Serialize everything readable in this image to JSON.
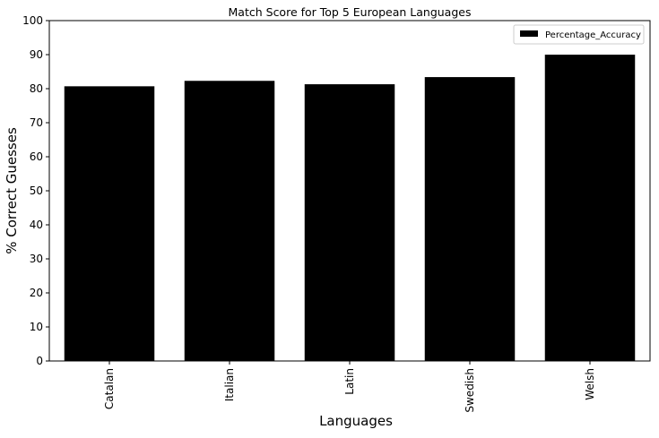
{
  "chart_data": {
    "type": "bar",
    "title": "Match Score for Top 5 European Languages",
    "xlabel": "Languages",
    "ylabel": "% Correct Guesses",
    "categories": [
      "Catalan",
      "Italian",
      "Latin",
      "Swedish",
      "Welsh"
    ],
    "series": [
      {
        "name": "Percentage_Accuracy",
        "values": [
          80.7,
          82.3,
          81.3,
          83.4,
          90.0
        ],
        "color": "#000000"
      }
    ],
    "ylim": [
      0,
      100
    ],
    "yticks": [
      "0",
      "10",
      "20",
      "30",
      "40",
      "50",
      "60",
      "70",
      "80",
      "90",
      "100"
    ],
    "grid": false,
    "legend_position": "top-right",
    "x_tick_rotation": "vertical"
  }
}
